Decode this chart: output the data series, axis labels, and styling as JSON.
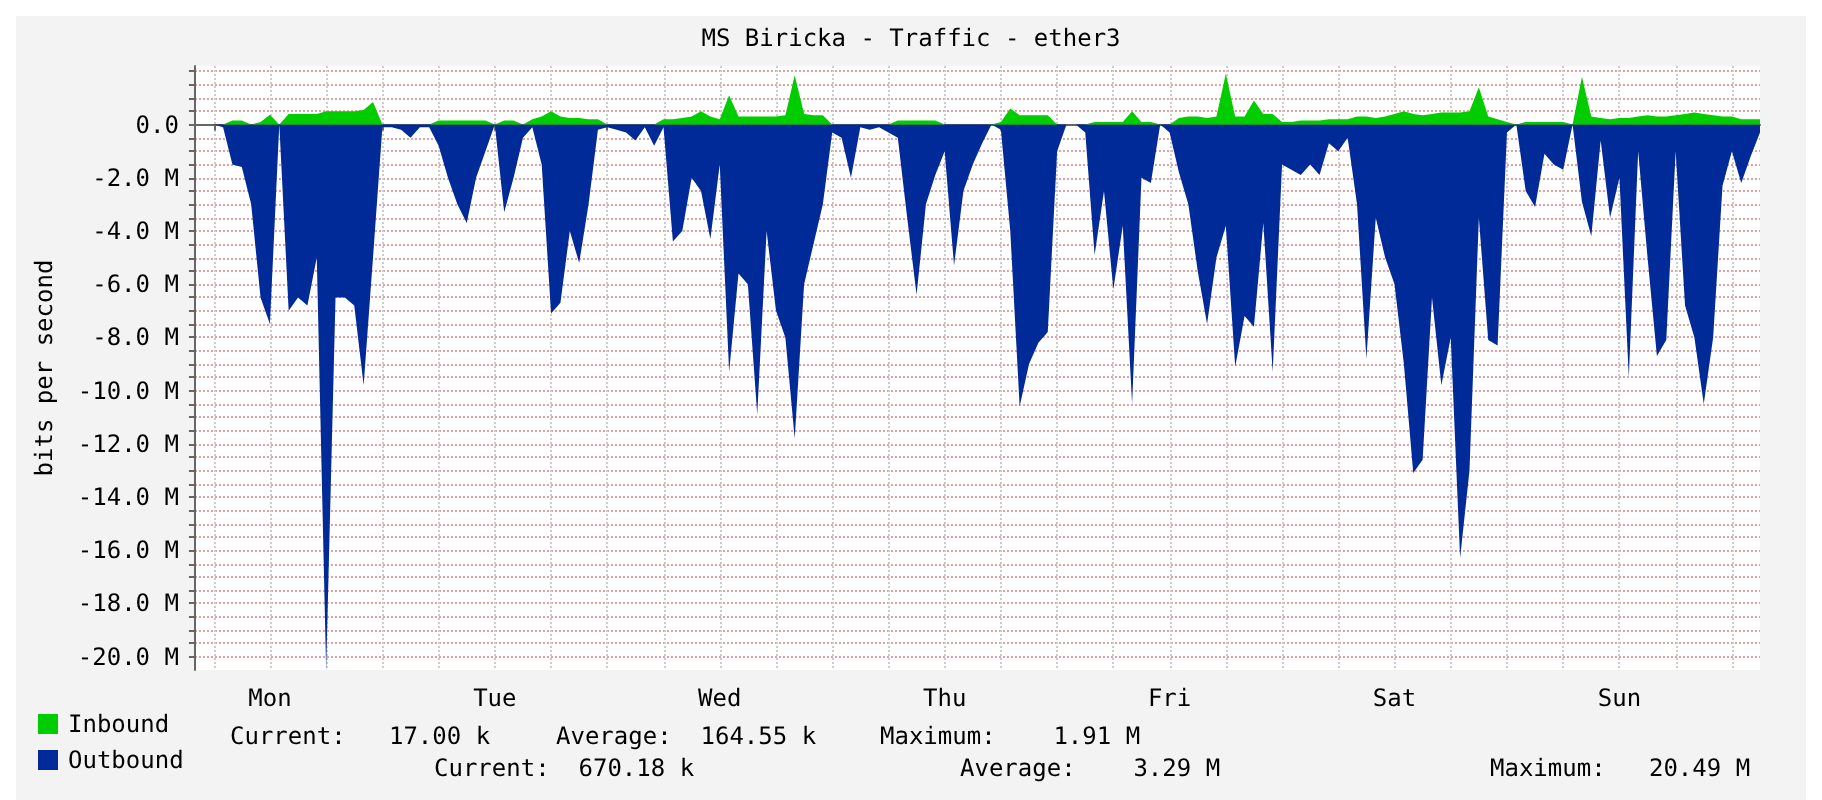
{
  "chart_data": {
    "type": "area",
    "title": "MS Biricka - Traffic - ether3",
    "ylabel": "bits per second",
    "categories": [
      null,
      null,
      null,
      null,
      null,
      null,
      null,
      null,
      "Mon",
      null,
      null,
      null,
      null,
      null,
      null,
      null,
      null,
      null,
      null,
      null,
      null,
      null,
      null,
      null,
      null,
      null,
      null,
      null,
      null,
      null,
      null,
      null,
      "Tue",
      null,
      null,
      null,
      null,
      null,
      null,
      null,
      null,
      null,
      null,
      null,
      null,
      null,
      null,
      null,
      null,
      null,
      null,
      null,
      null,
      null,
      null,
      null,
      "Wed",
      null,
      null,
      null,
      null,
      null,
      null,
      null,
      null,
      null,
      null,
      null,
      null,
      null,
      null,
      null,
      null,
      null,
      null,
      null,
      null,
      null,
      null,
      null,
      "Thu",
      null,
      null,
      null,
      null,
      null,
      null,
      null,
      null,
      null,
      null,
      null,
      null,
      null,
      null,
      null,
      null,
      null,
      null,
      null,
      null,
      null,
      null,
      null,
      "Fri",
      null,
      null,
      null,
      null,
      null,
      null,
      null,
      null,
      null,
      null,
      null,
      null,
      null,
      null,
      null,
      null,
      null,
      null,
      null,
      null,
      null,
      null,
      null,
      "Sat",
      null,
      null,
      null,
      null,
      null,
      null,
      null,
      null,
      null,
      null,
      null,
      null,
      null,
      null,
      null,
      null,
      null,
      null,
      null,
      null,
      null,
      null,
      null,
      "Sun",
      null,
      null,
      null,
      null,
      null,
      null,
      null,
      null,
      null,
      null,
      null,
      null,
      null,
      null,
      null
    ],
    "ylim": [
      -20.5,
      2.2
    ],
    "yticks": [
      {
        "value": 2,
        "label": null
      },
      {
        "value": 1.5,
        "label": null
      },
      {
        "value": 1,
        "label": null
      },
      {
        "value": 0.5,
        "label": null
      },
      {
        "value": 0,
        "label": "0.0"
      },
      {
        "value": -0.5,
        "label": null
      },
      {
        "value": -1,
        "label": null
      },
      {
        "value": -1.5,
        "label": null
      },
      {
        "value": -2,
        "label": "-2.0 M"
      },
      {
        "value": -2.5,
        "label": null
      },
      {
        "value": -3,
        "label": null
      },
      {
        "value": -3.5,
        "label": null
      },
      {
        "value": -4,
        "label": "-4.0 M"
      },
      {
        "value": -4.5,
        "label": null
      },
      {
        "value": -5,
        "label": null
      },
      {
        "value": -5.5,
        "label": null
      },
      {
        "value": -6,
        "label": "-6.0 M"
      },
      {
        "value": -6.5,
        "label": null
      },
      {
        "value": -7,
        "label": null
      },
      {
        "value": -7.5,
        "label": null
      },
      {
        "value": -8,
        "label": "-8.0 M"
      },
      {
        "value": -8.5,
        "label": null
      },
      {
        "value": -9,
        "label": null
      },
      {
        "value": -9.5,
        "label": null
      },
      {
        "value": -10,
        "label": "-10.0 M"
      },
      {
        "value": -10.5,
        "label": null
      },
      {
        "value": -11,
        "label": null
      },
      {
        "value": -11.5,
        "label": null
      },
      {
        "value": -12,
        "label": "-12.0 M"
      },
      {
        "value": -12.5,
        "label": null
      },
      {
        "value": -13,
        "label": null
      },
      {
        "value": -13.5,
        "label": null
      },
      {
        "value": -14,
        "label": "-14.0 M"
      },
      {
        "value": -14.5,
        "label": null
      },
      {
        "value": -15,
        "label": null
      },
      {
        "value": -15.5,
        "label": null
      },
      {
        "value": -16,
        "label": "-16.0 M"
      },
      {
        "value": -16.5,
        "label": null
      },
      {
        "value": -17,
        "label": null
      },
      {
        "value": -17.5,
        "label": null
      },
      {
        "value": -18,
        "label": "-18.0 M"
      },
      {
        "value": -18.5,
        "label": null
      },
      {
        "value": -19,
        "label": null
      },
      {
        "value": -19.5,
        "label": null
      },
      {
        "value": -20,
        "label": "-20.0 M"
      }
    ],
    "grid": true,
    "legend": "bottom left",
    "annotations": [
      "Current:   17.00 k",
      "Average:  164.55 k",
      "Maximum:    1.91 M",
      "Current:  670.18 k",
      "Average:    3.29 M",
      "Maximum:   20.49 M"
    ],
    "series": [
      {
        "name": "Outbound",
        "color": "#002a97",
        "values": [
          0,
          0,
          0,
          -0.1,
          -1.5,
          -1.6,
          -3,
          -6.5,
          -7.5,
          0,
          -7,
          -6.5,
          -6.8,
          -5,
          -20.5,
          -6.5,
          -6.5,
          -6.8,
          -9.8,
          -5,
          -0.1,
          -0.1,
          -0.2,
          -0.5,
          -0.1,
          -0.1,
          -0.8,
          -2,
          -3,
          -3.7,
          -2,
          -1,
          0,
          -3.3,
          -2,
          -0.5,
          -0.1,
          -1.5,
          -7.1,
          -6.7,
          -4,
          -5.2,
          -3,
          -0.2,
          -0.1,
          -0.2,
          -0.3,
          -0.6,
          -0.1,
          -0.8,
          -0.1,
          -4.4,
          -4,
          -2,
          -2.5,
          -4.3,
          -1.5,
          -9.3,
          -5.6,
          -6,
          -10.9,
          -4,
          -7,
          -8,
          -11.8,
          -6,
          -4.5,
          -3,
          -0.3,
          -0.5,
          -2,
          -0.1,
          -0.2,
          -0.1,
          -0.3,
          -0.5,
          -3.5,
          -6.4,
          -3,
          -1.9,
          -1,
          -5.3,
          -2.5,
          -1.5,
          -0.7,
          0,
          -0.2,
          -4,
          -10.6,
          -9,
          -8.2,
          -7.8,
          -1,
          0,
          0,
          -0.3,
          -4.9,
          -2.5,
          -6.2,
          -3.8,
          -10.5,
          -2,
          -2.2,
          0,
          -0.3,
          -1.8,
          -3,
          -5.5,
          -7.5,
          -5,
          -3.8,
          -9.1,
          -7.2,
          -7.6,
          -3.7,
          -9.3,
          -1.5,
          -1.7,
          -1.9,
          -1.5,
          -1.9,
          -0.7,
          -1,
          -0.5,
          -3,
          -8.8,
          -3.5,
          -5,
          -6,
          -9,
          -13.1,
          -12.6,
          -6.5,
          -9.8,
          -8,
          -16.3,
          -13,
          -3.5,
          -8.1,
          -8.3,
          -0.3,
          0,
          -2.5,
          -3.1,
          -1.1,
          -1.5,
          -1.7,
          0,
          -2.9,
          -4.2,
          -0.6,
          -3.5,
          -2,
          -9.5,
          -1,
          -5,
          -8.7,
          -8.1,
          -1,
          -6.8,
          -8,
          -10.5,
          -8,
          -2.3,
          -1,
          -2.2,
          -1.2,
          -0.3
        ]
      },
      {
        "name": "Inbound",
        "color": "#00cc00",
        "values": [
          0,
          0,
          0,
          0,
          0.15,
          0.15,
          0,
          0.1,
          0.37,
          0,
          0.4,
          0.4,
          0.4,
          0.4,
          0.5,
          0.5,
          0.5,
          0.5,
          0.55,
          0.85,
          0,
          0,
          0,
          0,
          0,
          0,
          0.15,
          0.15,
          0.15,
          0.15,
          0.15,
          0.15,
          0,
          0.15,
          0.15,
          0,
          0.2,
          0.3,
          0.5,
          0.3,
          0.25,
          0.25,
          0.2,
          0.2,
          0,
          0,
          0,
          0,
          0,
          0,
          0.2,
          0.2,
          0.25,
          0.3,
          0.5,
          0.3,
          0.2,
          1.1,
          0.3,
          0.3,
          0.3,
          0.3,
          0.3,
          0.35,
          1.85,
          0.4,
          0.35,
          0.35,
          0,
          0,
          0,
          0,
          0,
          0,
          0,
          0.15,
          0.15,
          0.15,
          0.15,
          0.15,
          0,
          0,
          0,
          0,
          0,
          0,
          0.1,
          0.6,
          0.35,
          0.35,
          0.35,
          0.35,
          0,
          0,
          0,
          0,
          0.1,
          0.1,
          0.1,
          0.1,
          0.5,
          0.1,
          0.1,
          0,
          0,
          0.25,
          0.3,
          0.3,
          0.25,
          0.3,
          1.91,
          0.3,
          0.3,
          0.9,
          0.4,
          0.4,
          0.1,
          0.1,
          0.15,
          0.15,
          0.15,
          0.2,
          0.2,
          0.2,
          0.3,
          0.3,
          0.25,
          0.3,
          0.4,
          0.5,
          0.4,
          0.35,
          0.4,
          0.45,
          0.45,
          0.45,
          0.5,
          1.4,
          0.3,
          0.2,
          0.1,
          0,
          0.1,
          0.1,
          0.1,
          0.1,
          0.1,
          0,
          1.8,
          0.3,
          0.25,
          0.2,
          0.25,
          0.25,
          0.3,
          0.35,
          0.3,
          0.3,
          0.35,
          0.4,
          0.45,
          0.4,
          0.35,
          0.3,
          0.3,
          0.2,
          0.2,
          0.2
        ]
      }
    ]
  }
}
